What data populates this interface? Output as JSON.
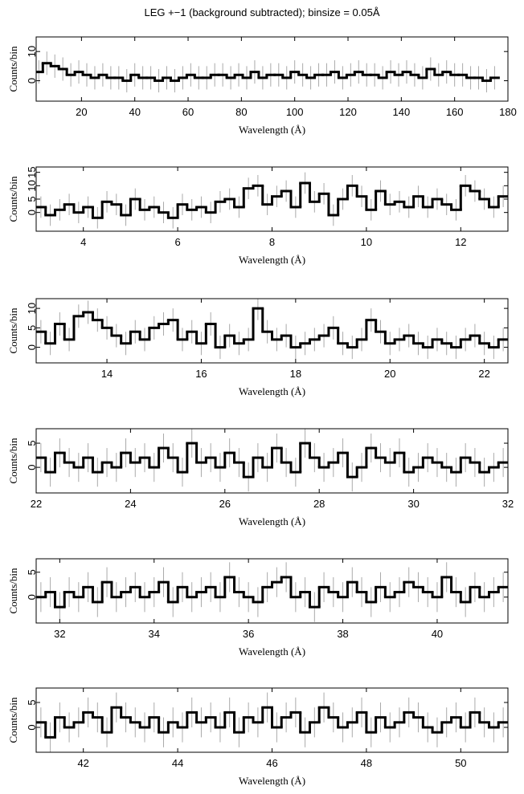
{
  "chart_data": [
    {
      "type": "step",
      "title": "LEG +−1 (background subtracted); binsize = 0.05Å",
      "x_label": "Wavelength (Å)",
      "y_label": "Counts/bin",
      "xlim": [
        3,
        180
      ],
      "ylim": [
        -7,
        15
      ],
      "xticks": [
        20,
        40,
        60,
        80,
        100,
        120,
        140,
        160,
        180
      ],
      "yticks": [
        0,
        10
      ],
      "error": 4,
      "x": [
        4,
        7,
        10,
        13,
        16,
        19,
        22,
        25,
        28,
        31,
        34,
        37,
        40,
        43,
        46,
        49,
        52,
        55,
        58,
        61,
        64,
        67,
        70,
        73,
        76,
        79,
        82,
        85,
        88,
        91,
        94,
        97,
        100,
        103,
        106,
        109,
        112,
        115,
        118,
        121,
        124,
        127,
        130,
        133,
        136,
        139,
        142,
        145,
        148,
        151,
        154,
        157,
        160,
        163,
        166,
        169,
        172,
        175
      ],
      "values": [
        3,
        6,
        5,
        4,
        2,
        3,
        2,
        1,
        2,
        1,
        1,
        0,
        2,
        1,
        1,
        0,
        1,
        0,
        1,
        2,
        1,
        1,
        2,
        2,
        1,
        2,
        1,
        3,
        1,
        2,
        2,
        1,
        3,
        2,
        1,
        2,
        2,
        3,
        1,
        2,
        3,
        2,
        2,
        1,
        3,
        2,
        3,
        2,
        1,
        4,
        2,
        3,
        2,
        2,
        1,
        1,
        0,
        1
      ]
    },
    {
      "type": "step",
      "x_label": "Wavelength (Å)",
      "y_label": "Counts/bin",
      "xlim": [
        3,
        13
      ],
      "ylim": [
        -7,
        17
      ],
      "xticks": [
        4,
        6,
        8,
        10,
        12
      ],
      "yticks": [
        0,
        5,
        10,
        15
      ],
      "error": 4,
      "x": [
        3.1,
        3.3,
        3.5,
        3.7,
        3.9,
        4.1,
        4.3,
        4.5,
        4.7,
        4.9,
        5.1,
        5.3,
        5.5,
        5.7,
        5.9,
        6.1,
        6.3,
        6.5,
        6.7,
        6.9,
        7.1,
        7.3,
        7.5,
        7.7,
        7.9,
        8.1,
        8.3,
        8.5,
        8.7,
        8.9,
        9.1,
        9.3,
        9.5,
        9.7,
        9.9,
        10.1,
        10.3,
        10.5,
        10.7,
        10.9,
        11.1,
        11.3,
        11.5,
        11.7,
        11.9,
        12.1,
        12.3,
        12.5,
        12.7,
        12.9
      ],
      "values": [
        2,
        -1,
        1,
        3,
        0,
        2,
        -2,
        4,
        3,
        -1,
        5,
        1,
        2,
        0,
        -2,
        3,
        1,
        2,
        0,
        4,
        5,
        2,
        9,
        10,
        3,
        6,
        8,
        2,
        11,
        4,
        7,
        -1,
        5,
        10,
        6,
        1,
        8,
        3,
        4,
        2,
        6,
        2,
        5,
        3,
        1,
        10,
        8,
        5,
        2,
        6
      ]
    },
    {
      "type": "step",
      "x_label": "Wavelength (Å)",
      "y_label": "Counts/bin",
      "xlim": [
        12.5,
        22.5
      ],
      "ylim": [
        -4,
        12.5
      ],
      "xticks": [
        14,
        16,
        18,
        20,
        22
      ],
      "yticks": [
        0,
        5,
        10
      ],
      "error": 3,
      "x": [
        12.6,
        12.8,
        13,
        13.2,
        13.4,
        13.6,
        13.8,
        14,
        14.2,
        14.4,
        14.6,
        14.8,
        15,
        15.2,
        15.4,
        15.6,
        15.8,
        16,
        16.2,
        16.4,
        16.6,
        16.8,
        17,
        17.2,
        17.4,
        17.6,
        17.8,
        18,
        18.2,
        18.4,
        18.6,
        18.8,
        19,
        19.2,
        19.4,
        19.6,
        19.8,
        20,
        20.2,
        20.4,
        20.6,
        20.8,
        21,
        21.2,
        21.4,
        21.6,
        21.8,
        22,
        22.2,
        22.4
      ],
      "values": [
        4,
        1,
        6,
        2,
        8,
        9,
        7,
        5,
        3,
        1,
        4,
        2,
        5,
        6,
        7,
        2,
        4,
        1,
        6,
        0,
        3,
        1,
        2,
        10,
        4,
        2,
        3,
        0,
        1,
        2,
        3,
        5,
        1,
        0,
        2,
        7,
        4,
        1,
        2,
        3,
        1,
        0,
        2,
        1,
        0,
        2,
        3,
        1,
        0,
        2
      ]
    },
    {
      "type": "step",
      "x_label": "Wavelength (Å)",
      "y_label": "Counts/bin",
      "xlim": [
        22,
        32
      ],
      "ylim": [
        -5.3,
        8
      ],
      "xticks": [
        22,
        24,
        26,
        28,
        30,
        32
      ],
      "yticks": [
        0,
        5
      ],
      "error": 3,
      "x": [
        22.1,
        22.3,
        22.5,
        22.7,
        22.9,
        23.1,
        23.3,
        23.5,
        23.7,
        23.9,
        24.1,
        24.3,
        24.5,
        24.7,
        24.9,
        25.1,
        25.3,
        25.5,
        25.7,
        25.9,
        26.1,
        26.3,
        26.5,
        26.7,
        26.9,
        27.1,
        27.3,
        27.5,
        27.7,
        27.9,
        28.1,
        28.3,
        28.5,
        28.7,
        28.9,
        29.1,
        29.3,
        29.5,
        29.7,
        29.9,
        30.1,
        30.3,
        30.5,
        30.7,
        30.9,
        31.1,
        31.3,
        31.5,
        31.7,
        31.9
      ],
      "values": [
        2,
        -1,
        3,
        1,
        0,
        2,
        -1,
        1,
        0,
        3,
        1,
        2,
        0,
        4,
        2,
        -1,
        5,
        1,
        2,
        0,
        3,
        1,
        -2,
        2,
        0,
        4,
        1,
        -1,
        5,
        2,
        0,
        1,
        3,
        -2,
        0,
        4,
        2,
        1,
        3,
        -1,
        0,
        2,
        1,
        0,
        -1,
        2,
        1,
        -1,
        0,
        1
      ]
    },
    {
      "type": "step",
      "x_label": "Wavelength (Å)",
      "y_label": "Counts/bin",
      "xlim": [
        31.5,
        41.5
      ],
      "ylim": [
        -5.2,
        7.7
      ],
      "xticks": [
        32,
        34,
        36,
        38,
        40
      ],
      "yticks": [
        0,
        5
      ],
      "error": 3,
      "x": [
        31.6,
        31.8,
        32,
        32.2,
        32.4,
        32.6,
        32.8,
        33,
        33.2,
        33.4,
        33.6,
        33.8,
        34,
        34.2,
        34.4,
        34.6,
        34.8,
        35,
        35.2,
        35.4,
        35.6,
        35.8,
        36,
        36.2,
        36.4,
        36.6,
        36.8,
        37,
        37.2,
        37.4,
        37.6,
        37.8,
        38,
        38.2,
        38.4,
        38.6,
        38.8,
        39,
        39.2,
        39.4,
        39.6,
        39.8,
        40,
        40.2,
        40.4,
        40.6,
        40.8,
        41,
        41.2,
        41.4
      ],
      "values": [
        0,
        1,
        -2,
        1,
        0,
        2,
        -1,
        3,
        0,
        1,
        2,
        0,
        1,
        3,
        -1,
        2,
        0,
        1,
        2,
        0,
        4,
        1,
        0,
        -1,
        2,
        3,
        4,
        0,
        1,
        -2,
        2,
        1,
        0,
        3,
        1,
        -1,
        2,
        0,
        1,
        3,
        2,
        1,
        0,
        4,
        1,
        -1,
        2,
        0,
        1,
        2
      ]
    },
    {
      "type": "step",
      "x_label": "Wavelength (Å)",
      "y_label": "Counts/bin",
      "xlim": [
        41,
        51
      ],
      "ylim": [
        -5,
        7.9
      ],
      "xticks": [
        42,
        44,
        46,
        48,
        50
      ],
      "yticks": [
        0,
        5
      ],
      "error": 3,
      "x": [
        41.1,
        41.3,
        41.5,
        41.7,
        41.9,
        42.1,
        42.3,
        42.5,
        42.7,
        42.9,
        43.1,
        43.3,
        43.5,
        43.7,
        43.9,
        44.1,
        44.3,
        44.5,
        44.7,
        44.9,
        45.1,
        45.3,
        45.5,
        45.7,
        45.9,
        46.1,
        46.3,
        46.5,
        46.7,
        46.9,
        47.1,
        47.3,
        47.5,
        47.7,
        47.9,
        48.1,
        48.3,
        48.5,
        48.7,
        48.9,
        49.1,
        49.3,
        49.5,
        49.7,
        49.9,
        50.1,
        50.3,
        50.5,
        50.7,
        50.9
      ],
      "values": [
        1,
        -2,
        2,
        0,
        1,
        3,
        2,
        -1,
        4,
        2,
        1,
        0,
        2,
        -1,
        1,
        0,
        3,
        1,
        2,
        0,
        3,
        -1,
        2,
        1,
        4,
        0,
        2,
        3,
        -1,
        1,
        4,
        2,
        0,
        1,
        3,
        -1,
        2,
        0,
        1,
        3,
        2,
        0,
        -1,
        1,
        2,
        0,
        3,
        1,
        0,
        1
      ]
    }
  ]
}
